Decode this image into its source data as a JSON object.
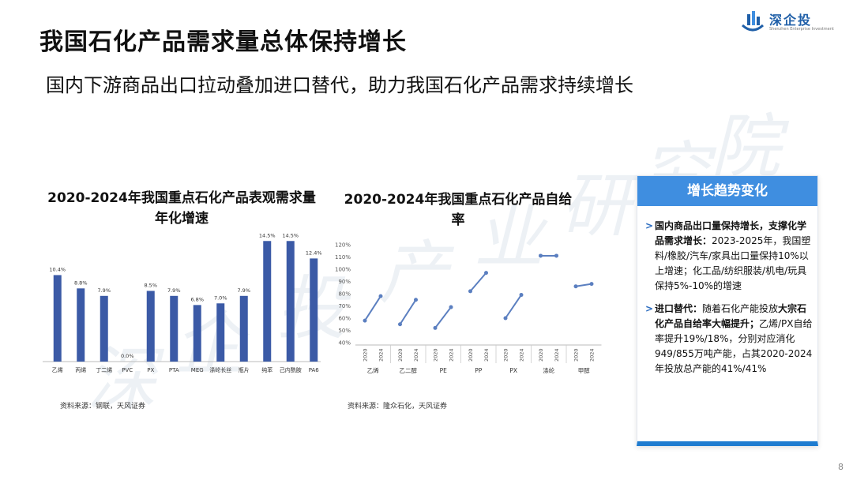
{
  "page": {
    "title": "我国石化产品需求量总体保持增长",
    "subtitle": "国内下游商品出口拉动叠加进口替代，助力我国石化产品需求持续增长",
    "page_number": "8"
  },
  "logo": {
    "name": "深企投",
    "tagline": "Shenzhen Enterprise Investment",
    "watermark": "深企投产业研究院",
    "brand_color": "#1f5fa8"
  },
  "chart_data": [
    {
      "type": "bar",
      "title": "2020-2024年我国重点石化产品表观需求量年化增速",
      "categories": [
        "乙烯",
        "丙烯",
        "丁二烯",
        "PVC",
        "PX",
        "PTA",
        "MEG",
        "涤纶长丝",
        "瓶片",
        "纯苯",
        "己内酰胺",
        "PA6"
      ],
      "values": [
        10.4,
        8.8,
        7.9,
        0.0,
        8.5,
        7.9,
        6.8,
        7.0,
        7.9,
        14.5,
        14.5,
        12.4
      ],
      "labels": [
        "10.4%",
        "8.8%",
        "7.9%",
        "0.0%",
        "8.5%",
        "7.9%",
        "6.8%",
        "7.0%",
        "7.9%",
        "14.5%",
        "14.5%",
        "12.4%"
      ],
      "color": "#3b5aa6",
      "ylim": [
        0,
        15
      ],
      "source": "资料来源：钢联，天风证券"
    },
    {
      "type": "line",
      "title": "2020-2024年我国重点石化产品自给率",
      "y_ticks": [
        "40%",
        "50%",
        "60%",
        "70%",
        "80%",
        "90%",
        "100%",
        "110%",
        "120%"
      ],
      "ylim": [
        40,
        120
      ],
      "x_years": [
        "2020",
        "2024"
      ],
      "series": [
        {
          "name": "乙烯",
          "values": [
            58,
            78
          ]
        },
        {
          "name": "乙二醇",
          "values": [
            55,
            75
          ]
        },
        {
          "name": "PE",
          "values": [
            52,
            69
          ]
        },
        {
          "name": "PP",
          "values": [
            82,
            97
          ]
        },
        {
          "name": "PX",
          "values": [
            60,
            79
          ]
        },
        {
          "name": "涤纶",
          "values": [
            111,
            111
          ]
        },
        {
          "name": "甲醇",
          "values": [
            86,
            88
          ]
        }
      ],
      "color": "#5b7fc0",
      "source": "资料来源：隆众石化，天风证券"
    }
  ],
  "panel": {
    "header": "增长趋势变化",
    "p1_bold": "国内商品出口量保持增长，支撑化学品需求增长：",
    "p1_text": "2023-2025年，我国塑料/橡胶/汽车/家具出口量保持10%以上增速；化工品/纺织服装/机电/玩具保持5%-10%的增速",
    "p2_bold1": "进口替代：",
    "p2_text1": "随着石化产能投放",
    "p2_bold2": "大宗石化产品自给率大幅提升；",
    "p2_text2": "乙烯/PX自给率提升19%/18%，分别对应消化949/855万吨产能，占其2020-2024年投放总产能的41%/41%",
    "accent": "#3f8ee0"
  }
}
